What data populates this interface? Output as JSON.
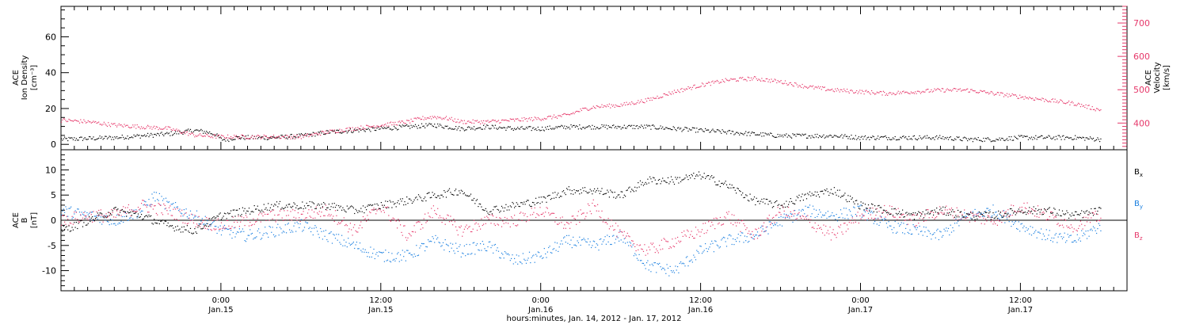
{
  "colors": {
    "black": "#000000",
    "pink": "#e6386a",
    "blue": "#1a7fe0"
  },
  "chart_data": [
    {
      "type": "scatter",
      "panel": "top",
      "x_unit": "hours since Jan 14 2012 12:00",
      "xlim": [
        0,
        80
      ],
      "left_axis": {
        "label_lines": [
          "ACE",
          "Ion Density",
          "[cm⁻³]"
        ],
        "ylim": [
          -3,
          77
        ],
        "ticks": [
          0,
          20,
          40,
          60
        ],
        "tick_labels": [
          "0",
          "20",
          "40",
          "60"
        ]
      },
      "right_axis": {
        "label_lines": [
          "ACE",
          "Velocity",
          "[km/s]"
        ],
        "ylim": [
          320,
          750
        ],
        "ticks": [
          400,
          500,
          600,
          700
        ],
        "tick_labels": [
          "400",
          "500",
          "600",
          "700"
        ]
      },
      "series": [
        {
          "name": "",
          "axis": "left",
          "color": "#000000",
          "x": [
            0,
            4,
            6,
            8,
            10,
            11,
            11.5,
            12,
            12.5,
            13,
            14,
            16,
            18,
            20,
            22,
            24,
            26,
            28,
            30,
            32,
            34,
            36,
            38,
            40,
            42,
            44,
            46,
            48,
            50,
            52,
            54,
            56,
            58,
            60,
            62,
            64,
            66,
            68,
            70,
            72,
            74,
            76,
            78
          ],
          "y": [
            3,
            4,
            5,
            6,
            8,
            7,
            6,
            3,
            3,
            4,
            4,
            4,
            5,
            7,
            8,
            9,
            10,
            11,
            9,
            10,
            9,
            9,
            10,
            10,
            10,
            10,
            9,
            8,
            7,
            6,
            5,
            5,
            5,
            4,
            4,
            4,
            4,
            3,
            3,
            4,
            4,
            4,
            3
          ]
        },
        {
          "name": "",
          "axis": "right",
          "color": "#e6386a",
          "x": [
            0,
            2,
            4,
            6,
            8,
            10,
            12,
            14,
            16,
            18,
            20,
            22,
            24,
            26,
            27,
            28,
            29,
            30,
            32,
            34,
            36,
            38,
            39,
            40,
            42,
            44,
            46,
            48,
            50,
            52,
            54,
            56,
            58,
            60,
            62,
            64,
            66,
            68,
            70,
            72,
            74,
            76,
            78
          ],
          "y": [
            410,
            405,
            395,
            390,
            385,
            365,
            360,
            360,
            360,
            360,
            375,
            385,
            395,
            405,
            415,
            420,
            415,
            405,
            405,
            410,
            415,
            425,
            440,
            450,
            455,
            470,
            495,
            515,
            530,
            535,
            525,
            510,
            500,
            495,
            490,
            495,
            500,
            500,
            490,
            480,
            470,
            460,
            440
          ]
        }
      ]
    },
    {
      "type": "scatter",
      "panel": "bottom",
      "xlim": [
        0,
        80
      ],
      "y_axis": {
        "label_lines": [
          "ACE",
          "B",
          "[nT]"
        ],
        "ylim": [
          -14,
          14
        ],
        "ticks": [
          -10,
          -5,
          0,
          5,
          10
        ],
        "tick_labels": [
          "-10",
          "-5",
          "0",
          "5",
          "10"
        ]
      },
      "zero_line": true,
      "series": [
        {
          "name": "Bx",
          "color": "#000000",
          "x": [
            0,
            2,
            4,
            6,
            8,
            10,
            12,
            14,
            16,
            18,
            20,
            22,
            24,
            26,
            28,
            30,
            32,
            34,
            36,
            38,
            40,
            42,
            44,
            46,
            48,
            50,
            52,
            54,
            56,
            58,
            60,
            62,
            64,
            66,
            68,
            70,
            72,
            74,
            76,
            78
          ],
          "y": [
            -2,
            0,
            2,
            1,
            -1,
            -2,
            1,
            2,
            3,
            3,
            3,
            2,
            3,
            4,
            5,
            6,
            2,
            3,
            4,
            6,
            6,
            5,
            8,
            8,
            9,
            7,
            4,
            3,
            5,
            6,
            3,
            2,
            1,
            2,
            1,
            1,
            2,
            2,
            1,
            2
          ]
        },
        {
          "name": "By",
          "color": "#1a7fe0",
          "x": [
            0,
            2,
            4,
            6,
            7,
            8,
            10,
            12,
            14,
            16,
            18,
            20,
            22,
            24,
            26,
            28,
            30,
            32,
            34,
            36,
            38,
            40,
            42,
            44,
            46,
            48,
            50,
            52,
            54,
            56,
            58,
            60,
            62,
            64,
            66,
            68,
            70,
            72,
            74,
            76,
            78
          ],
          "y": [
            2,
            1,
            0,
            2,
            5,
            3,
            1,
            -2,
            -3,
            -2,
            -1,
            -3,
            -5,
            -7,
            -7,
            -4,
            -6,
            -5,
            -8,
            -7,
            -4,
            -5,
            -3,
            -9,
            -10,
            -6,
            -4,
            -3,
            0,
            2,
            1,
            2,
            -1,
            -2,
            -3,
            1,
            2,
            -1,
            -3,
            -4,
            -1
          ]
        },
        {
          "name": "Bz",
          "color": "#e6386a",
          "x": [
            0,
            2,
            4,
            6,
            8,
            10,
            12,
            14,
            16,
            18,
            20,
            22,
            24,
            26,
            28,
            30,
            32,
            34,
            36,
            38,
            40,
            42,
            44,
            46,
            48,
            50,
            52,
            54,
            56,
            58,
            60,
            62,
            64,
            66,
            68,
            70,
            72,
            74,
            76,
            78
          ],
          "y": [
            0,
            1,
            1,
            3,
            2,
            0,
            -1,
            0,
            1,
            1,
            2,
            -2,
            3,
            -3,
            2,
            -2,
            0,
            0,
            2,
            -1,
            3,
            -3,
            -6,
            -4,
            -2,
            1,
            -3,
            2,
            0,
            -3,
            1,
            2,
            0,
            2,
            1,
            0,
            3,
            1,
            -1,
            1
          ]
        }
      ],
      "legend": [
        {
          "label": "B",
          "sub": "x",
          "color": "#000000"
        },
        {
          "label": "B",
          "sub": "y",
          "color": "#1a7fe0"
        },
        {
          "label": "B",
          "sub": "z",
          "color": "#e6386a"
        }
      ]
    }
  ],
  "x_axis": {
    "ticks": [
      12,
      24,
      36,
      48,
      60,
      72
    ],
    "tick_labels": [
      {
        "time": "0:00",
        "date": "Jan.15"
      },
      {
        "time": "12:00",
        "date": "Jan.15"
      },
      {
        "time": "0:00",
        "date": "Jan.16"
      },
      {
        "time": "12:00",
        "date": "Jan.16"
      },
      {
        "time": "0:00",
        "date": "Jan.17"
      },
      {
        "time": "12:00",
        "date": "Jan.17"
      }
    ],
    "title": "hours:minutes, Jan. 14, 2012 - Jan. 17, 2012"
  }
}
